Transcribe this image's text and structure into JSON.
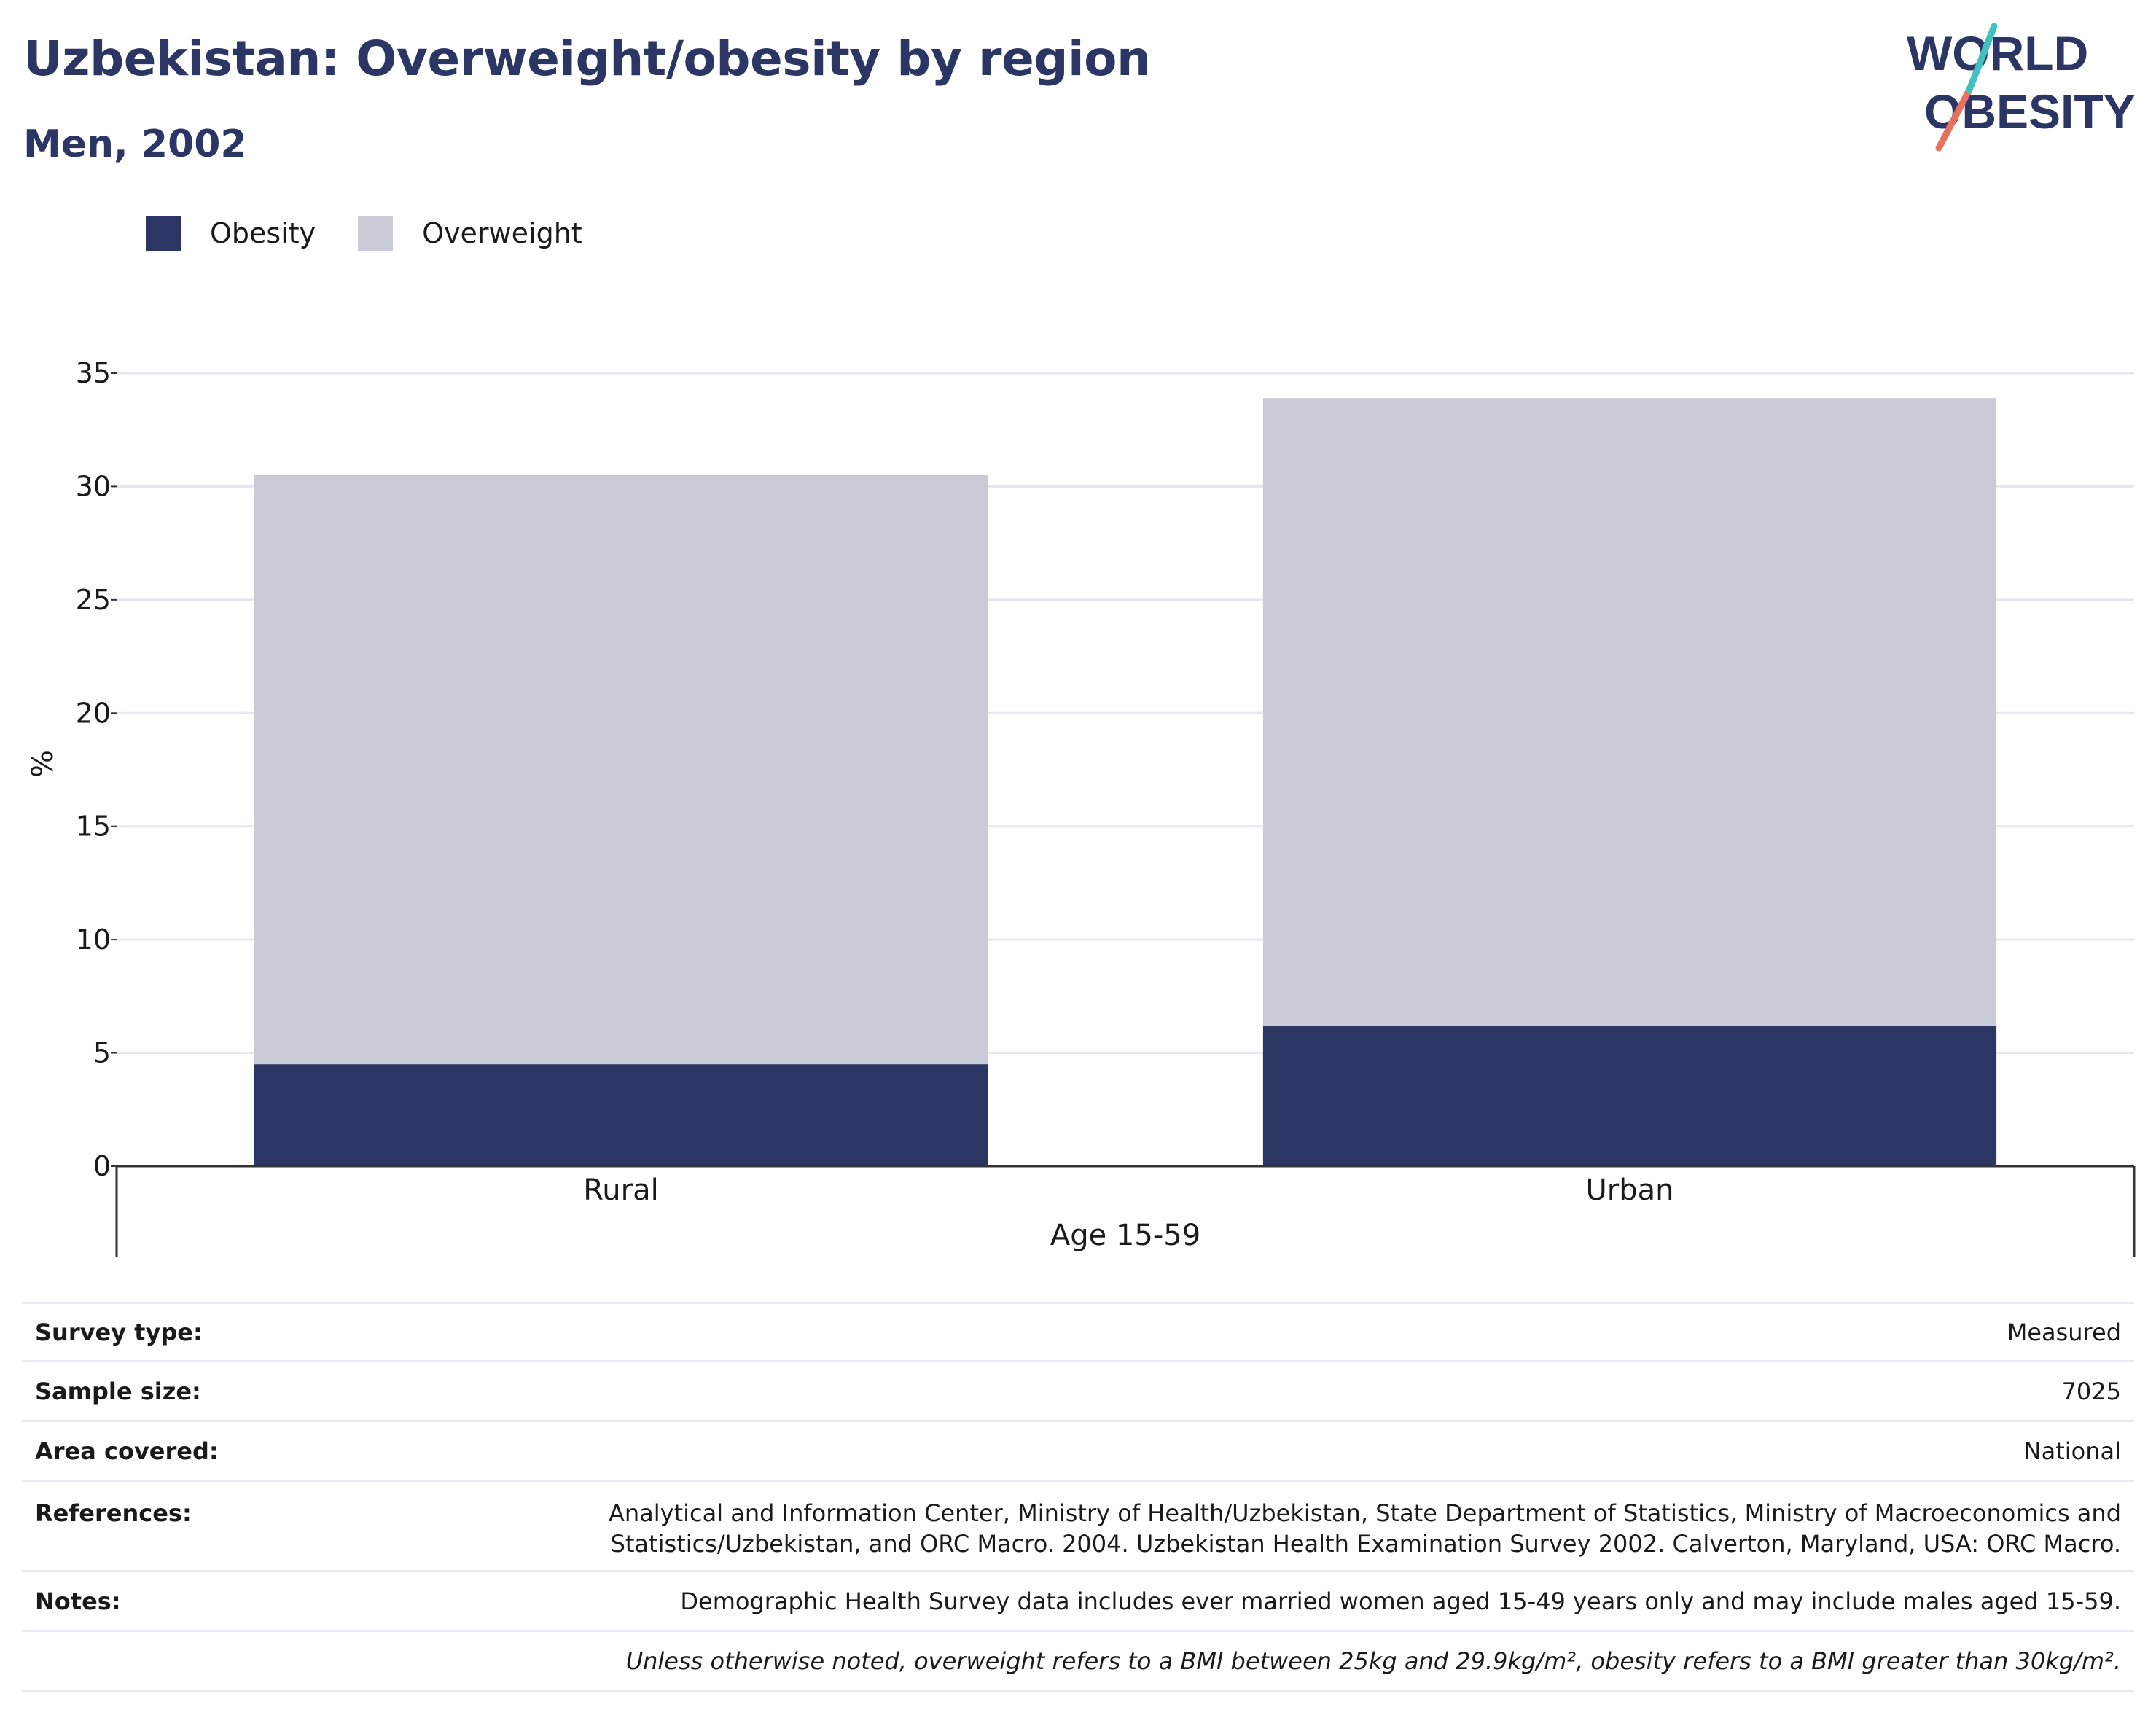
{
  "header": {
    "title": "Uzbekistan: Overweight/obesity by region",
    "subtitle": "Men, 2002"
  },
  "logo": {
    "line1": "WORLD",
    "line2": "OBESITY"
  },
  "colors": {
    "obesity": "#2b3664",
    "overweight": "#c9cbd7",
    "title": "#2b3664",
    "logo_teal": "#3fc1c0",
    "logo_coral": "#e8715e",
    "grid": "#e6e7ee",
    "axis": "#333333"
  },
  "legend": {
    "items": [
      {
        "label": "Obesity",
        "color": "#2b3664"
      },
      {
        "label": "Overweight",
        "color": "#c9cbd7"
      }
    ]
  },
  "chart_data": {
    "type": "bar",
    "stacked": true,
    "categories": [
      "Rural",
      "Urban"
    ],
    "group_label": "Age 15-59",
    "series": [
      {
        "name": "Obesity",
        "values": [
          4.5,
          6.2
        ]
      },
      {
        "name": "Overweight",
        "values": [
          26.0,
          27.7
        ]
      }
    ],
    "ylabel": "%",
    "xlabel": "",
    "ylim": [
      0,
      35
    ],
    "yticks": [
      0,
      5,
      10,
      15,
      20,
      25,
      30,
      35
    ],
    "grid": true,
    "legend_position": "top-left"
  },
  "info": {
    "survey_type": {
      "label": "Survey type:",
      "value": "Measured"
    },
    "sample_size": {
      "label": "Sample size:",
      "value": "7025"
    },
    "area_covered": {
      "label": "Area covered:",
      "value": "National"
    },
    "references": {
      "label": "References:",
      "line1": "Analytical and Information Center, Ministry of Health/Uzbekistan, State Department of Statistics, Ministry of Macroeconomics and",
      "line2": "Statistics/Uzbekistan, and ORC Macro. 2004. Uzbekistan Health Examination Survey 2002. Calverton, Maryland, USA: ORC Macro."
    },
    "notes": {
      "label": "Notes:",
      "value": "Demographic Health Survey data includes ever married women aged 15-49 years only and may include males aged 15-59."
    },
    "footnote": "Unless otherwise noted, overweight refers to a BMI between 25kg and 29.9kg/m², obesity refers to a BMI greater than 30kg/m²."
  }
}
